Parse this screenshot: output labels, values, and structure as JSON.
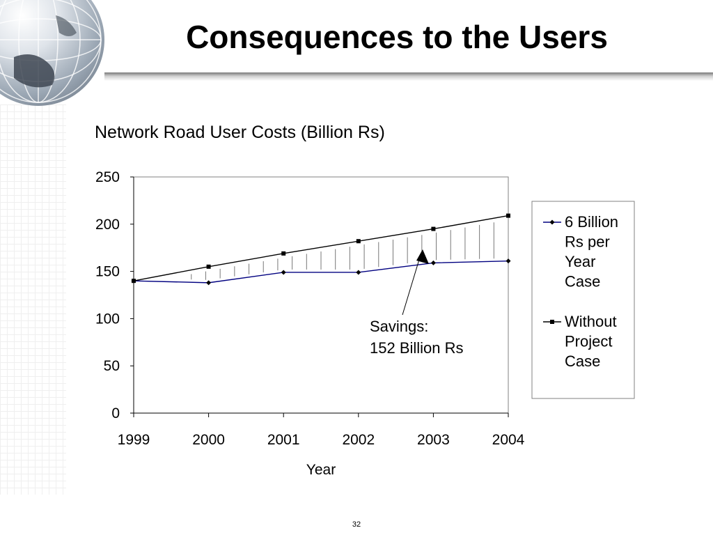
{
  "slide": {
    "title": "Consequences to the Users",
    "page_number": "32"
  },
  "chart_data": {
    "type": "line",
    "title": "Network Road User Costs (Billion Rs)",
    "xlabel": "Year",
    "ylabel": "",
    "categories": [
      "1999",
      "2000",
      "2001",
      "2002",
      "2003",
      "2004"
    ],
    "ylim": [
      0,
      250
    ],
    "yticks": [
      "0",
      "50",
      "100",
      "150",
      "200",
      "250"
    ],
    "grid": false,
    "legend_position": "right",
    "series": [
      {
        "name": "6 Billion Rs per Year Case",
        "legend_lines": [
          "6 Billion",
          "Rs per",
          "Year",
          "Case"
        ],
        "marker": "diamond",
        "color": "#000000",
        "line_color": "#000080",
        "values": [
          140,
          138,
          149,
          149,
          159,
          161
        ]
      },
      {
        "name": "Without Project Case",
        "legend_lines": [
          "Without",
          "Project",
          "Case"
        ],
        "marker": "square",
        "color": "#000000",
        "line_color": "#000000",
        "values": [
          140,
          155,
          169,
          182,
          195,
          209
        ]
      }
    ],
    "annotation": {
      "lines": [
        "Savings:",
        "152 Billion Rs"
      ]
    }
  }
}
